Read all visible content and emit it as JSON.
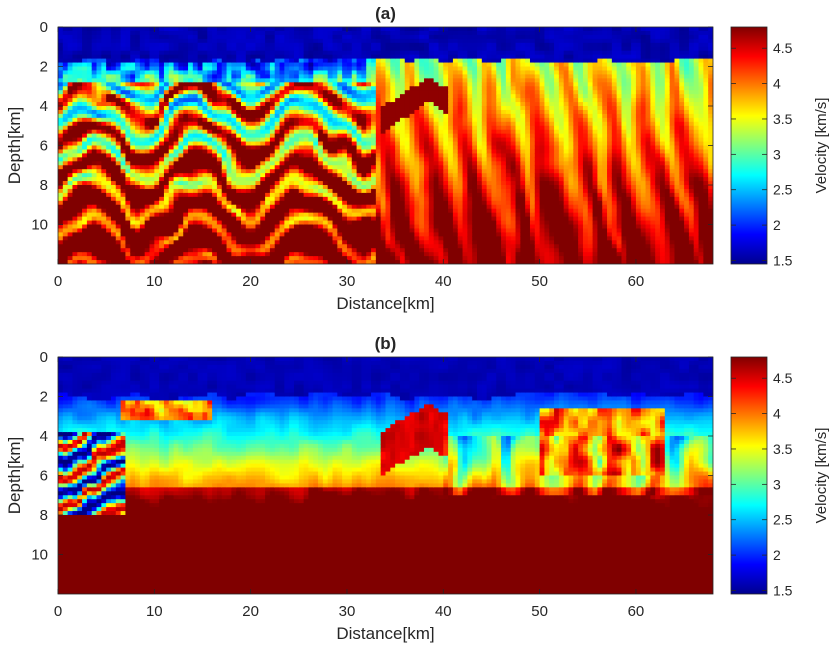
{
  "chart_data": [
    {
      "id": "a",
      "type": "heatmap",
      "title": "(a)",
      "xlabel": "Distance[km]",
      "ylabel": "Depth[km]",
      "xlim": [
        0,
        68
      ],
      "ylim": [
        12,
        0
      ],
      "xticks": [
        0,
        10,
        20,
        30,
        40,
        50,
        60
      ],
      "yticks": [
        0,
        2,
        4,
        6,
        8,
        10
      ],
      "colorbar": {
        "label": "Velocity [km/s]",
        "range": [
          1.45,
          4.8
        ],
        "ticks": [
          1.5,
          2,
          2.5,
          3,
          3.5,
          4,
          4.5
        ],
        "colormap": "jet"
      },
      "features": {
        "water_depth_km": 1.8,
        "high_velocity_body": {
          "x_range_km": [
            33,
            40
          ],
          "top_depth_km": 2.5
        }
      },
      "grid": false
    },
    {
      "id": "b",
      "type": "heatmap",
      "title": "(b)",
      "xlabel": "Distance[km]",
      "ylabel": "Depth[km]",
      "xlim": [
        0,
        68
      ],
      "ylim": [
        12,
        0
      ],
      "xticks": [
        0,
        10,
        20,
        30,
        40,
        50,
        60
      ],
      "yticks": [
        0,
        2,
        4,
        6,
        8,
        10
      ],
      "colorbar": {
        "label": "Velocity [km/s]",
        "range": [
          1.45,
          4.8
        ],
        "ticks": [
          1.5,
          2,
          2.5,
          3,
          3.5,
          4,
          4.5
        ],
        "colormap": "jet"
      },
      "features": {
        "water_depth_km": 2.0,
        "high_velocity_body": {
          "x_range_km": [
            33,
            40
          ],
          "top_depth_km": 2.5
        }
      },
      "grid": false
    }
  ]
}
